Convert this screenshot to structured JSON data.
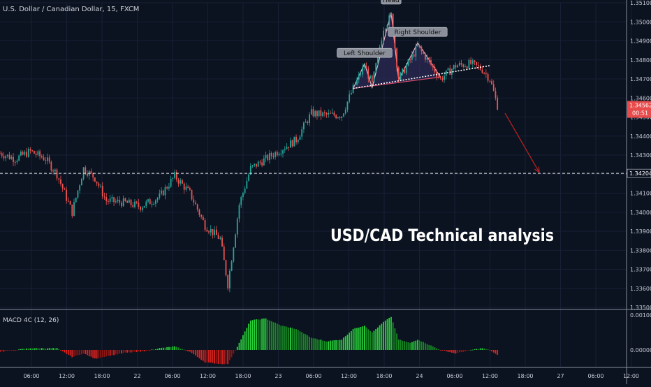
{
  "header": {
    "symbol_title": "U.S. Dollar / Canadian Dollar, 15, FXCM"
  },
  "overlay": {
    "headline": "USD/CAD Technical analysis"
  },
  "colors": {
    "background": "#0b1220",
    "grid": "#182035",
    "axis_text": "#c8ccd6",
    "bull": "#26a69a",
    "bear": "#ef5350",
    "macd_up": "#2ecc40",
    "macd_down": "#e0221d",
    "pattern_fill": "#2c2a56",
    "arrow": "#b22222",
    "price_badge": "#e84b4b"
  },
  "chart_data": [
    {
      "type": "candlestick",
      "title": "U.S. Dollar / Canadian Dollar, 15, FXCM",
      "ylim": [
        1.335,
        1.351
      ],
      "y_ticks": [
        "1.35100",
        "1.35000",
        "1.34900",
        "1.34800",
        "1.34700",
        "1.34600",
        "1.34500",
        "1.34400",
        "1.34300",
        "1.34200",
        "1.34100",
        "1.34000",
        "1.33900",
        "1.33800",
        "1.33700",
        "1.33600",
        "1.33500"
      ],
      "x_ticks": [
        "06:00",
        "12:00",
        "18:00",
        "22",
        "06:00",
        "12:00",
        "18:00",
        "23",
        "06:00",
        "12:00",
        "18:00",
        "24",
        "06:00",
        "12:00",
        "18:00",
        "27",
        "06:00",
        "12:00"
      ],
      "price_path": [
        [
          0,
          1.3431
        ],
        [
          4,
          1.3428
        ],
        [
          8,
          1.3432
        ],
        [
          12,
          1.3428
        ],
        [
          15,
          1.342
        ],
        [
          19,
          1.34
        ],
        [
          22,
          1.3423
        ],
        [
          25,
          1.3418
        ],
        [
          28,
          1.3406
        ],
        [
          33,
          1.3405
        ],
        [
          37,
          1.3403
        ],
        [
          42,
          1.3408
        ],
        [
          46,
          1.3419
        ],
        [
          50,
          1.341
        ],
        [
          54,
          1.3393
        ],
        [
          58,
          1.3386
        ],
        [
          60,
          1.3362
        ],
        [
          63,
          1.3404
        ],
        [
          66,
          1.3423
        ],
        [
          70,
          1.3428
        ],
        [
          74,
          1.3433
        ],
        [
          78,
          1.3438
        ],
        [
          82,
          1.3452
        ],
        [
          86,
          1.3451
        ],
        [
          90,
          1.3451
        ],
        [
          93,
          1.3465
        ],
        [
          96,
          1.3477
        ],
        [
          98,
          1.3467
        ],
        [
          101,
          1.3497
        ],
        [
          103,
          1.3503
        ],
        [
          105,
          1.347
        ],
        [
          108,
          1.348
        ],
        [
          110,
          1.3487
        ],
        [
          113,
          1.3479
        ],
        [
          116,
          1.347
        ],
        [
          120,
          1.3477
        ],
        [
          124,
          1.3478
        ],
        [
          127,
          1.3475
        ],
        [
          129,
          1.347
        ],
        [
          131,
          1.3456
        ]
      ],
      "annotations": [
        {
          "label": "Left Shoulder",
          "x": 96,
          "y": 1.3478
        },
        {
          "label": "Head",
          "x": 103,
          "y": 1.3506
        },
        {
          "label": "Right Shoulder",
          "x": 110,
          "y": 1.3489
        }
      ],
      "neckline": {
        "from": [
          93,
          1.3465
        ],
        "to": [
          129,
          1.3477
        ],
        "extend_to": [
          116,
          1.3471
        ]
      },
      "horizontal_level": {
        "value": 1.34204,
        "label": "1.34204"
      },
      "projection_arrow": {
        "from": [
          133,
          1.3452
        ],
        "to": [
          142,
          1.3421
        ]
      },
      "last_price": {
        "label": "1.34562",
        "value": 1.34562,
        "countdown": "00:51"
      }
    },
    {
      "type": "bar",
      "title": "MACD 4C (12, 26)",
      "ylim": [
        -0.0004,
        0.0011
      ],
      "y_ticks": [
        "0.00100",
        "0.00000"
      ],
      "profile": [
        [
          0,
          -5e-05
        ],
        [
          8,
          5e-05
        ],
        [
          15,
          5e-05
        ],
        [
          19,
          -0.0002
        ],
        [
          22,
          -0.0001
        ],
        [
          25,
          -0.00025
        ],
        [
          28,
          -0.00018
        ],
        [
          33,
          -8e-05
        ],
        [
          37,
          -5e-05
        ],
        [
          42,
          5e-05
        ],
        [
          46,
          0.0001
        ],
        [
          50,
          -5e-05
        ],
        [
          54,
          -0.00035
        ],
        [
          58,
          -0.0004
        ],
        [
          60,
          -0.0004
        ],
        [
          63,
          0.0002
        ],
        [
          66,
          0.00085
        ],
        [
          70,
          0.0009
        ],
        [
          74,
          0.0007
        ],
        [
          78,
          0.0006
        ],
        [
          82,
          0.00035
        ],
        [
          86,
          0.00025
        ],
        [
          90,
          0.0003
        ],
        [
          93,
          0.0006
        ],
        [
          96,
          0.0007
        ],
        [
          98,
          0.0005
        ],
        [
          101,
          0.0008
        ],
        [
          103,
          0.00095
        ],
        [
          105,
          0.0003
        ],
        [
          108,
          0.0002
        ],
        [
          110,
          0.0003
        ],
        [
          113,
          0.00015
        ],
        [
          116,
          0.0
        ],
        [
          120,
          -0.0001
        ],
        [
          124,
          0.0
        ],
        [
          127,
          5e-05
        ],
        [
          129,
          0.0
        ],
        [
          131,
          -0.00015
        ]
      ]
    }
  ]
}
